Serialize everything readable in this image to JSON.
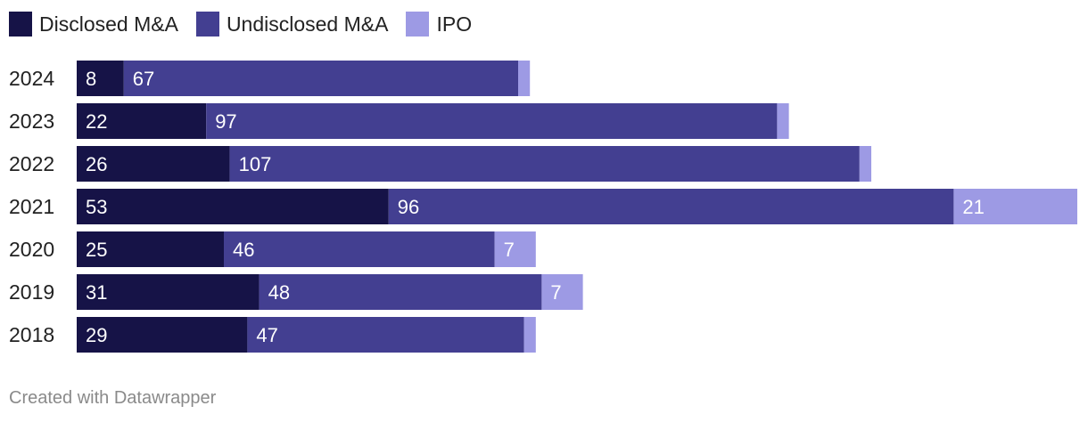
{
  "legend": [
    {
      "label": "Disclosed M&A",
      "color": "#161347"
    },
    {
      "label": "Undisclosed M&A",
      "color": "#433f91"
    },
    {
      "label": "IPO",
      "color": "#9d9ae4"
    }
  ],
  "chart_data": {
    "type": "bar",
    "orientation": "horizontal",
    "stacked": true,
    "categories": [
      "2024",
      "2023",
      "2022",
      "2021",
      "2020",
      "2019",
      "2018"
    ],
    "series": [
      {
        "name": "Disclosed M&A",
        "color": "#161347",
        "values": [
          8,
          22,
          26,
          53,
          25,
          31,
          29
        ],
        "labels": [
          "8",
          "22",
          "26",
          "53",
          "25",
          "31",
          "29"
        ]
      },
      {
        "name": "Undisclosed M&A",
        "color": "#433f91",
        "values": [
          67,
          97,
          107,
          96,
          46,
          48,
          47
        ],
        "labels": [
          "67",
          "97",
          "107",
          "96",
          "46",
          "48",
          "47"
        ]
      },
      {
        "name": "IPO",
        "color": "#9d9ae4",
        "values": [
          2,
          2,
          2,
          21,
          7,
          7,
          2
        ],
        "labels": [
          "",
          "",
          "",
          "21",
          "7",
          "7",
          ""
        ]
      }
    ],
    "xlim": [
      0,
      170
    ],
    "grid": false,
    "legend_position": "top-left"
  },
  "footer": {
    "text": "Created with Datawrapper"
  }
}
